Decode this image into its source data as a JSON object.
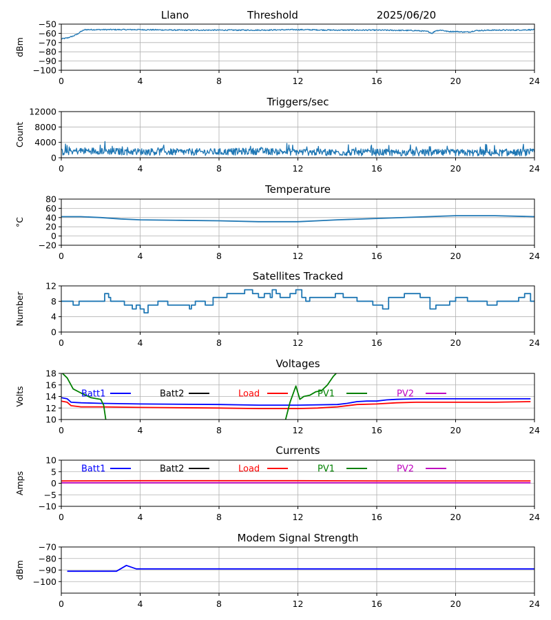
{
  "header": {
    "station": "Llano",
    "mode": "Threshold",
    "date": "2025/06/20"
  },
  "colors": {
    "tab_blue": "#1f77b4",
    "batt1": "#0000ff",
    "batt2": "#000000",
    "load": "#ff0000",
    "pv1": "#008000",
    "pv2": "#bf00bf",
    "grid": "#b0b0b0"
  },
  "chart_data": [
    {
      "id": "signal",
      "type": "line",
      "title": "",
      "ylabel": "dBm",
      "xlim": [
        0,
        24
      ],
      "ylim": [
        -100,
        -50
      ],
      "xticks": [
        0,
        4,
        8,
        12,
        16,
        20,
        24
      ],
      "yticks": [
        -100,
        -90,
        -80,
        -70,
        -60,
        -50
      ],
      "grid": true,
      "series": [
        {
          "color": "#1f77b4",
          "noise": 0.6,
          "x": [
            0,
            0.3,
            0.6,
            0.8,
            1.0,
            1.2,
            2,
            4,
            6,
            8,
            10,
            12,
            14,
            16,
            18,
            18.6,
            18.8,
            19.0,
            19.3,
            19.6,
            20,
            20.4,
            20.7,
            21,
            22,
            23,
            24
          ],
          "y": [
            -66,
            -65,
            -63,
            -61,
            -58,
            -56,
            -56,
            -56,
            -56.5,
            -56.5,
            -56.5,
            -56,
            -56.5,
            -56.5,
            -57,
            -58,
            -60,
            -57,
            -56.5,
            -58,
            -58,
            -58.5,
            -58.5,
            -57,
            -56.5,
            -56.5,
            -56
          ]
        }
      ]
    },
    {
      "id": "triggers",
      "type": "line",
      "title": "Triggers/sec",
      "ylabel": "Count",
      "xlim": [
        0,
        24
      ],
      "ylim": [
        0,
        12000
      ],
      "xticks": [
        0,
        4,
        8,
        12,
        16,
        20,
        24
      ],
      "yticks": [
        0,
        4000,
        8000,
        12000
      ],
      "grid": true,
      "series": [
        {
          "color": "#1f77b4",
          "noise": 900,
          "x": [
            0,
            1,
            2,
            3,
            4,
            6,
            8,
            10,
            12,
            14,
            16,
            18,
            20,
            22,
            24
          ],
          "y": [
            1500,
            1800,
            1800,
            1600,
            1600,
            1500,
            1500,
            1700,
            1500,
            1400,
            1400,
            1300,
            1300,
            1300,
            1400
          ]
        }
      ]
    },
    {
      "id": "temperature",
      "type": "line",
      "title": "Temperature",
      "ylabel": "°C",
      "xlim": [
        0,
        24
      ],
      "ylim": [
        -20,
        80
      ],
      "xticks": [
        0,
        4,
        8,
        12,
        16,
        20,
        24
      ],
      "yticks": [
        -20,
        0,
        20,
        40,
        60,
        80
      ],
      "grid": true,
      "series": [
        {
          "color": "#1f77b4",
          "noise": 0,
          "x": [
            0,
            1,
            2,
            3,
            4,
            6,
            8,
            10,
            11,
            12,
            13,
            14,
            16,
            18,
            20,
            22,
            24
          ],
          "y": [
            42,
            42,
            40,
            37,
            35,
            34,
            33,
            31,
            31,
            31,
            33,
            35,
            38,
            41,
            44,
            44,
            42
          ]
        }
      ]
    },
    {
      "id": "satellites",
      "type": "line",
      "title": "Satellites Tracked",
      "ylabel": "Number",
      "xlim": [
        0,
        24
      ],
      "ylim": [
        0,
        12
      ],
      "xticks": [
        0,
        4,
        8,
        12,
        16,
        20,
        24
      ],
      "yticks": [
        0,
        4,
        8,
        12
      ],
      "grid": true,
      "series": [
        {
          "color": "#1f77b4",
          "step": true,
          "noise": 0,
          "x": [
            0,
            0.6,
            0.9,
            1.9,
            2.2,
            2.4,
            2.5,
            3.0,
            3.2,
            3.6,
            3.8,
            4.0,
            4.2,
            4.4,
            4.9,
            5.4,
            6.0,
            6.5,
            6.6,
            6.8,
            7.3,
            7.7,
            8.0,
            8.4,
            8.9,
            9.3,
            9.4,
            9.7,
            10.0,
            10.3,
            10.6,
            10.7,
            10.9,
            11.1,
            11.6,
            11.9,
            12.2,
            12.4,
            12.6,
            12.9,
            13.6,
            13.9,
            14.3,
            15.0,
            15.2,
            15.8,
            16.3,
            16.6,
            16.8,
            17.4,
            18.2,
            18.7,
            19.0,
            19.7,
            20.0,
            20.1,
            20.6,
            21.2,
            21.6,
            22.1,
            22.6,
            23.2,
            23.5,
            23.8,
            24
          ],
          "y": [
            8,
            7,
            8,
            8,
            10,
            9,
            8,
            8,
            7,
            6,
            7,
            6,
            5,
            7,
            8,
            7,
            7,
            6,
            7,
            8,
            7,
            9,
            9,
            10,
            10,
            11,
            11,
            10,
            9,
            10,
            9,
            11,
            10,
            9,
            10,
            11,
            9,
            8,
            9,
            9,
            9,
            10,
            9,
            8,
            8,
            7,
            6,
            9,
            9,
            10,
            9,
            6,
            7,
            8,
            9,
            9,
            8,
            8,
            7,
            8,
            8,
            9,
            10,
            8,
            8
          ]
        }
      ]
    },
    {
      "id": "voltages",
      "type": "line",
      "title": "Voltages",
      "ylabel": "Volts",
      "xlim": [
        0,
        24
      ],
      "ylim": [
        10,
        18
      ],
      "xticks": [
        0,
        4,
        8,
        12,
        16,
        20,
        24
      ],
      "yticks": [
        10,
        12,
        14,
        16,
        18
      ],
      "grid": true,
      "legend": [
        {
          "label": "Batt1",
          "color": "#0000ff"
        },
        {
          "label": "Batt2",
          "color": "#000000"
        },
        {
          "label": "Load",
          "color": "#ff0000"
        },
        {
          "label": "PV1",
          "color": "#008000"
        },
        {
          "label": "PV2",
          "color": "#bf00bf"
        }
      ],
      "legend_position": "top",
      "series": [
        {
          "name": "Batt1",
          "color": "#0000ff",
          "noise": 0,
          "x": [
            0,
            0.3,
            0.5,
            1,
            2,
            4,
            8,
            10,
            12,
            14,
            14.5,
            15,
            15.5,
            16,
            16.5,
            17,
            18,
            20,
            22,
            23.8
          ],
          "y": [
            13.8,
            13.6,
            13.0,
            12.9,
            12.8,
            12.7,
            12.6,
            12.5,
            12.5,
            12.6,
            12.8,
            13.1,
            13.2,
            13.2,
            13.4,
            13.5,
            13.6,
            13.6,
            13.6,
            13.6
          ]
        },
        {
          "name": "Load",
          "color": "#ff0000",
          "noise": 0,
          "x": [
            0,
            0.3,
            0.5,
            1,
            2,
            4,
            8,
            10,
            12,
            13,
            14,
            15,
            16,
            17,
            18,
            20,
            22,
            23.8
          ],
          "y": [
            13.2,
            13.0,
            12.4,
            12.2,
            12.2,
            12.1,
            12.0,
            11.9,
            11.9,
            12.0,
            12.2,
            12.6,
            12.7,
            12.9,
            13.0,
            13.0,
            13.0,
            13.1
          ]
        },
        {
          "name": "PV1",
          "color": "#008000",
          "noise": 0,
          "segments": true,
          "x": [
            [
              0,
              0.3,
              0.6,
              1.0,
              1.5,
              2.0,
              2.15,
              2.3
            ],
            [
              11.3,
              11.6,
              11.9,
              12.1,
              12.3,
              12.6,
              12.9,
              13.2,
              13.5,
              13.8,
              14.0
            ]
          ],
          "y": [
            [
              18.2,
              17.2,
              15.3,
              14.6,
              13.8,
              13.5,
              12.5,
              9.0
            ],
            [
              9.0,
              13.0,
              15.8,
              13.5,
              14.0,
              14.2,
              14.8,
              15.0,
              16.0,
              17.5,
              18.2
            ]
          ]
        }
      ]
    },
    {
      "id": "currents",
      "type": "line",
      "title": "Currents",
      "ylabel": "Amps",
      "xlim": [
        0,
        24
      ],
      "ylim": [
        -10,
        10
      ],
      "xticks": [
        0,
        4,
        8,
        12,
        16,
        20,
        24
      ],
      "yticks": [
        -10,
        -5,
        0,
        5,
        10
      ],
      "grid": true,
      "legend": [
        {
          "label": "Batt1",
          "color": "#0000ff"
        },
        {
          "label": "Batt2",
          "color": "#000000"
        },
        {
          "label": "Load",
          "color": "#ff0000"
        },
        {
          "label": "PV1",
          "color": "#008000"
        },
        {
          "label": "PV2",
          "color": "#bf00bf"
        }
      ],
      "legend_position": "top",
      "series": [
        {
          "name": "PV2",
          "color": "#bf00bf",
          "noise": 0,
          "x": [
            0,
            23.8
          ],
          "y": [
            0.2,
            0.2
          ]
        },
        {
          "name": "Load",
          "color": "#ff0000",
          "noise": 0,
          "x": [
            0,
            4,
            8,
            12,
            16,
            20,
            23.8
          ],
          "y": [
            1.0,
            1.1,
            1.1,
            1.1,
            1.0,
            1.0,
            1.0
          ]
        }
      ]
    },
    {
      "id": "modem",
      "type": "line",
      "title": "Modem Signal Strength",
      "ylabel": "dBm",
      "xlim": [
        0,
        24
      ],
      "ylim": [
        -110,
        -70
      ],
      "xticks": [
        0,
        4,
        8,
        12,
        16,
        20,
        24
      ],
      "yticks": [
        -100,
        -90,
        -80,
        -70
      ],
      "grid": true,
      "series": [
        {
          "color": "#0000ff",
          "noise": 0,
          "x": [
            0.3,
            2.8,
            3.3,
            3.8,
            24
          ],
          "y": [
            -91,
            -91,
            -86,
            -89,
            -89
          ]
        }
      ]
    }
  ]
}
